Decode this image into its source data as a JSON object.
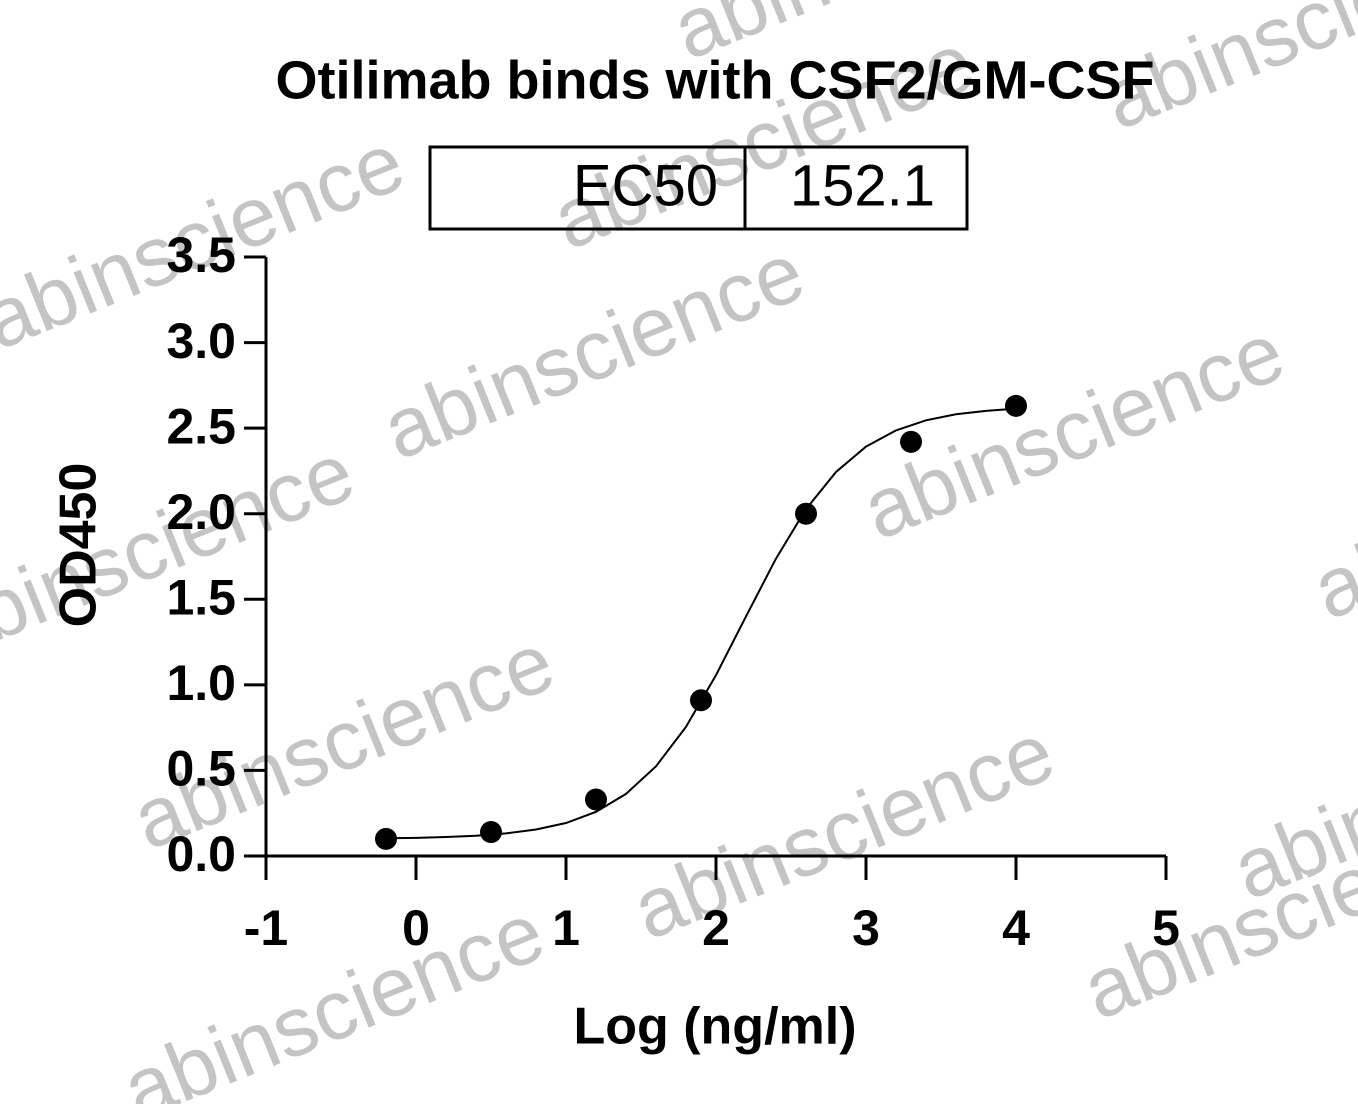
{
  "chart_data": {
    "type": "scatter",
    "title": "Otilimab binds with CSF2/GM-CSF",
    "table": [
      "EC50",
      152.1
    ],
    "xlabel": "Log (ng/ml)",
    "ylabel": "OD450",
    "x": [
      -0.2,
      0.5,
      1.2,
      1.9,
      2.6,
      3.3,
      4.0
    ],
    "values": [
      0.1,
      0.14,
      0.33,
      0.91,
      2.0,
      2.42,
      2.63
    ],
    "color": "#000000",
    "curve_x": [
      -0.2,
      0.0,
      0.2,
      0.4,
      0.6,
      0.8,
      1.0,
      1.2,
      1.4,
      1.6,
      1.8,
      2.0,
      2.2,
      2.4,
      2.6,
      2.8,
      3.0,
      3.2,
      3.4,
      3.6,
      3.8,
      4.0
    ],
    "curve_values": [
      0.104,
      0.106,
      0.111,
      0.118,
      0.132,
      0.155,
      0.193,
      0.258,
      0.363,
      0.524,
      0.755,
      1.057,
      1.4,
      1.738,
      2.027,
      2.244,
      2.392,
      2.487,
      2.546,
      2.581,
      2.601,
      2.614
    ],
    "xlim": [
      -1,
      5
    ],
    "xticks": [
      -1,
      0,
      1,
      2,
      3,
      4,
      5
    ],
    "ylim": [
      0,
      3.5
    ],
    "yticks": [
      {
        "value": 0,
        "label": "0.0"
      },
      0.5,
      {
        "value": 1,
        "label": "1.0"
      },
      1.5,
      {
        "value": 2,
        "label": "2.0"
      },
      2.5,
      {
        "value": 3,
        "label": "3.0"
      },
      3.5
    ],
    "grid": false,
    "watermark": "abinscience"
  }
}
